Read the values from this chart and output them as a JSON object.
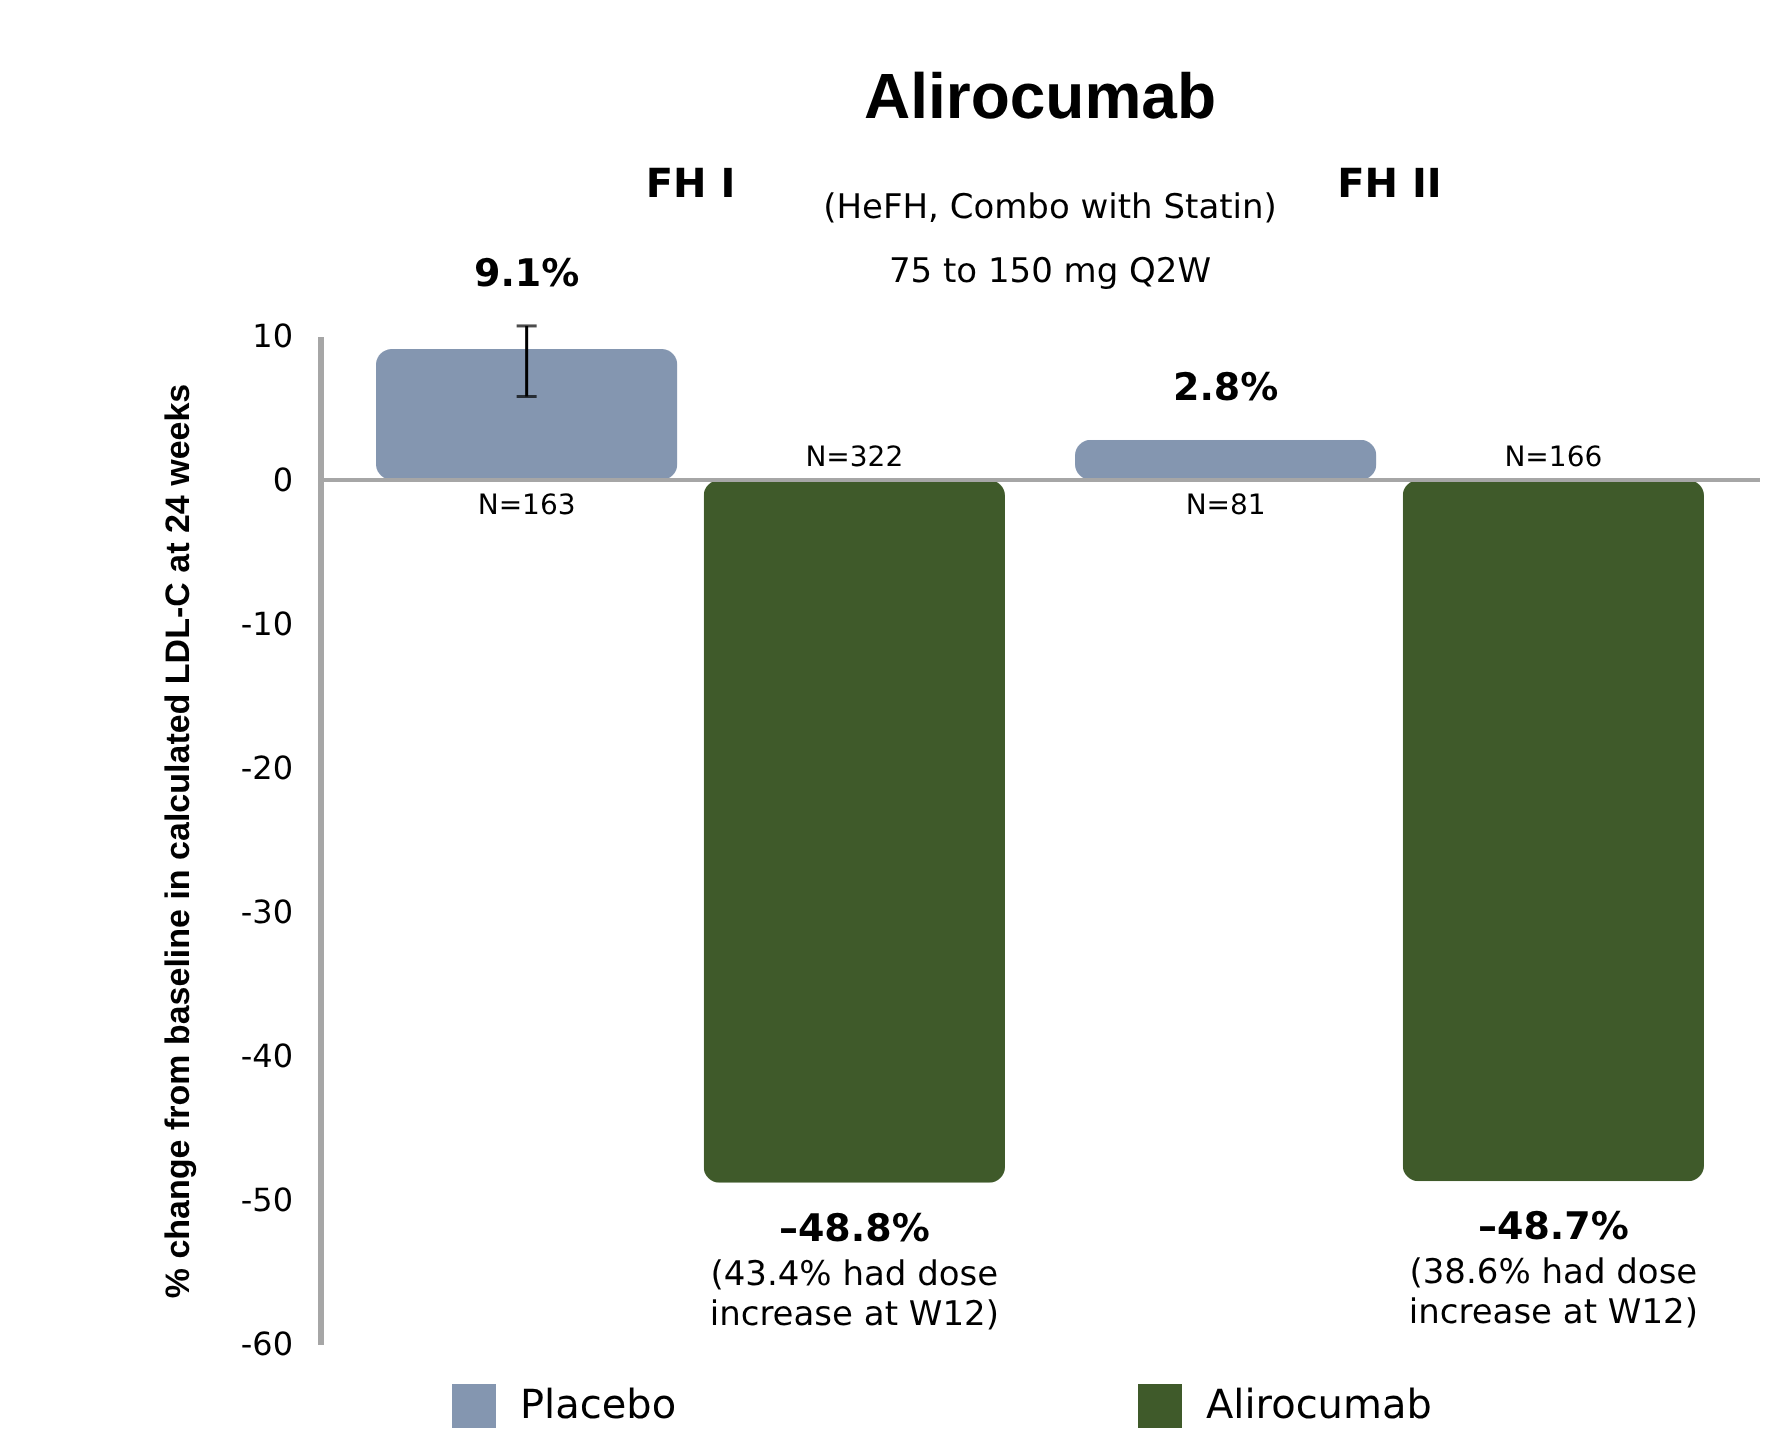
{
  "chart_data": {
    "type": "bar",
    "title": "Alirocumab",
    "subtitle": "(HeFH, Combo with Statin)\n75 to 150 mg Q2W",
    "ylabel": "% change from baseline in calculated LDL-C at 24 weeks",
    "categories": [
      "FH I",
      "FH II"
    ],
    "series": [
      {
        "name": "Placebo",
        "color": "#8496b0",
        "values": [
          9.1,
          2.8
        ],
        "value_labels": [
          "9.1%",
          "2.8%"
        ],
        "errors": [
          [
            5.8,
            10.7
          ],
          null
        ]
      },
      {
        "name": "Alirocumab",
        "color": "#3f5a2a",
        "values": [
          -48.8,
          -48.7
        ],
        "value_labels": [
          "–48.8%",
          "–48.7%"
        ]
      }
    ],
    "ylim": [
      -60,
      10
    ],
    "yticks": [
      -60,
      -50,
      -40,
      -30,
      -20,
      -10,
      0,
      10
    ],
    "grid": false,
    "legend": "bottom",
    "ref_lines": [
      {
        "axis": "y",
        "value": 0,
        "color": "#a6a6a6"
      }
    ],
    "annotations": [
      "N=163",
      "N=322",
      "N=81",
      "N=166",
      "(43.4% had dose\nincrease at W12)",
      "(38.6% had dose\nincrease at W12)"
    ]
  }
}
